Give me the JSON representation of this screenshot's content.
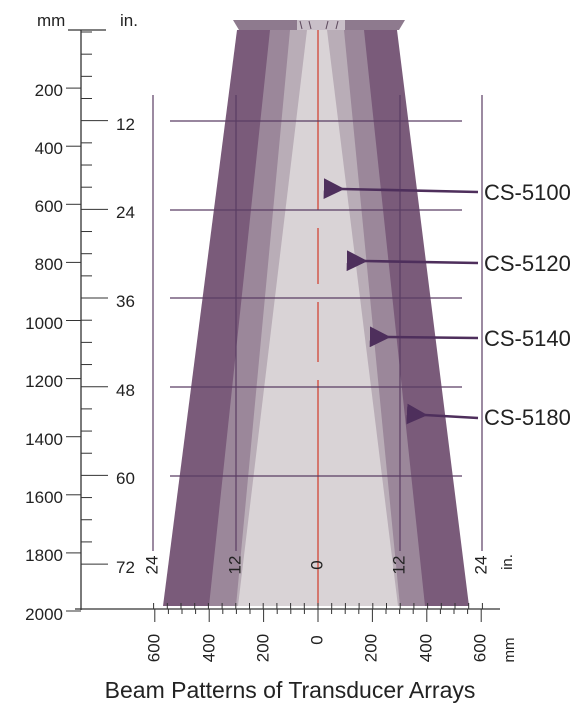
{
  "title": "Beam Patterns of Transducer Arrays",
  "colors": {
    "outer_beam": "#7a5b7a",
    "beam_2": "#9b879a",
    "beam_3": "#b9adb7",
    "inner_beam": "#d9d3d6",
    "housing": "#8e7a8e",
    "centerline": "#d23a2a",
    "arrow": "#4e2f5c",
    "ref_line": "#5a3d63"
  },
  "left_axis": {
    "mm_unit": "mm",
    "in_unit": "in.",
    "mm_labels": [
      "200",
      "400",
      "600",
      "800",
      "1000",
      "1200",
      "1400",
      "1600",
      "1800",
      "2000"
    ],
    "in_labels": [
      "12",
      "24",
      "36",
      "48",
      "60",
      "72"
    ]
  },
  "bottom_axis": {
    "in_unit": "in.",
    "mm_unit": "mm",
    "in_labels": [
      "24",
      "12",
      "0",
      "12",
      "24"
    ],
    "mm_labels": [
      "600",
      "400",
      "200",
      "0",
      "200",
      "400",
      "600"
    ]
  },
  "beams": [
    {
      "label": "CS-5100"
    },
    {
      "label": "CS-5120"
    },
    {
      "label": "CS-5140"
    },
    {
      "label": "CS-5180"
    }
  ]
}
